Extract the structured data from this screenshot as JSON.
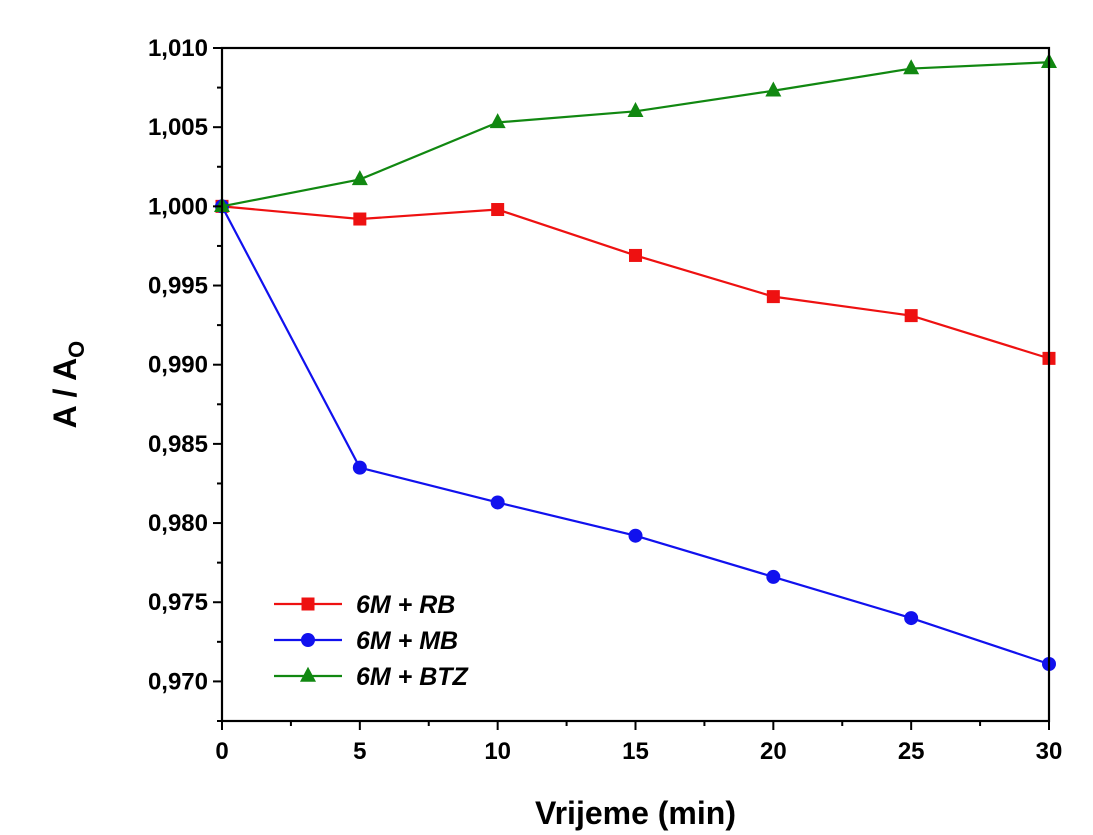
{
  "chart_data": {
    "type": "line",
    "xlabel": "Vrijeme (min)",
    "ylabel": "A / A",
    "ylabel_subscript": "O",
    "xlim": [
      0,
      30
    ],
    "ylim": [
      0.9675,
      1.01
    ],
    "x_ticks": [
      0,
      5,
      10,
      15,
      20,
      25,
      30
    ],
    "x_tick_labels": [
      "0",
      "5",
      "10",
      "15",
      "20",
      "25",
      "30"
    ],
    "y_ticks": [
      0.97,
      0.975,
      0.98,
      0.985,
      0.99,
      0.995,
      1.0,
      1.005,
      1.01
    ],
    "y_tick_labels": [
      "0,970",
      "0,975",
      "0,980",
      "0,985",
      "0,990",
      "0,995",
      "1,000",
      "1,005",
      "1,010"
    ],
    "grid": false,
    "legend_position": "bottom-left",
    "x": [
      0,
      5,
      10,
      15,
      20,
      25,
      30
    ],
    "series": [
      {
        "name": "6M + RB",
        "color": "#ee1111",
        "marker": "square",
        "values": [
          1.0,
          0.9992,
          0.9998,
          0.9969,
          0.9943,
          0.9931,
          0.9904
        ]
      },
      {
        "name": "6M + MB",
        "color": "#1111ee",
        "marker": "circle",
        "values": [
          1.0,
          0.9835,
          0.9813,
          0.9792,
          0.9766,
          0.974,
          0.9711
        ]
      },
      {
        "name": "6M + BTZ",
        "color": "#118811",
        "marker": "triangle",
        "values": [
          1.0,
          1.0017,
          1.0053,
          1.006,
          1.0073,
          1.0087,
          1.0091
        ]
      }
    ]
  }
}
